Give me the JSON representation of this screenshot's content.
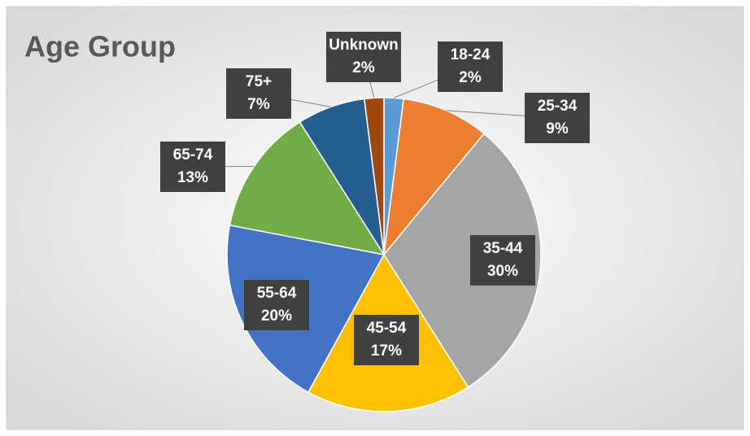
{
  "chart_data": {
    "type": "pie",
    "title": "Age Group",
    "categories": [
      "18-24",
      "25-34",
      "35-44",
      "45-54",
      "55-64",
      "65-74",
      "75+",
      "Unknown"
    ],
    "values": [
      2,
      9,
      30,
      17,
      20,
      13,
      7,
      2
    ],
    "value_labels": [
      "2%",
      "9%",
      "30%",
      "17%",
      "20%",
      "13%",
      "7%",
      "2%"
    ],
    "colors": [
      "#5b9bd5",
      "#ed7d31",
      "#a5a5a5",
      "#ffc000",
      "#4472c4",
      "#70ad47",
      "#255e91",
      "#9e480e"
    ]
  }
}
